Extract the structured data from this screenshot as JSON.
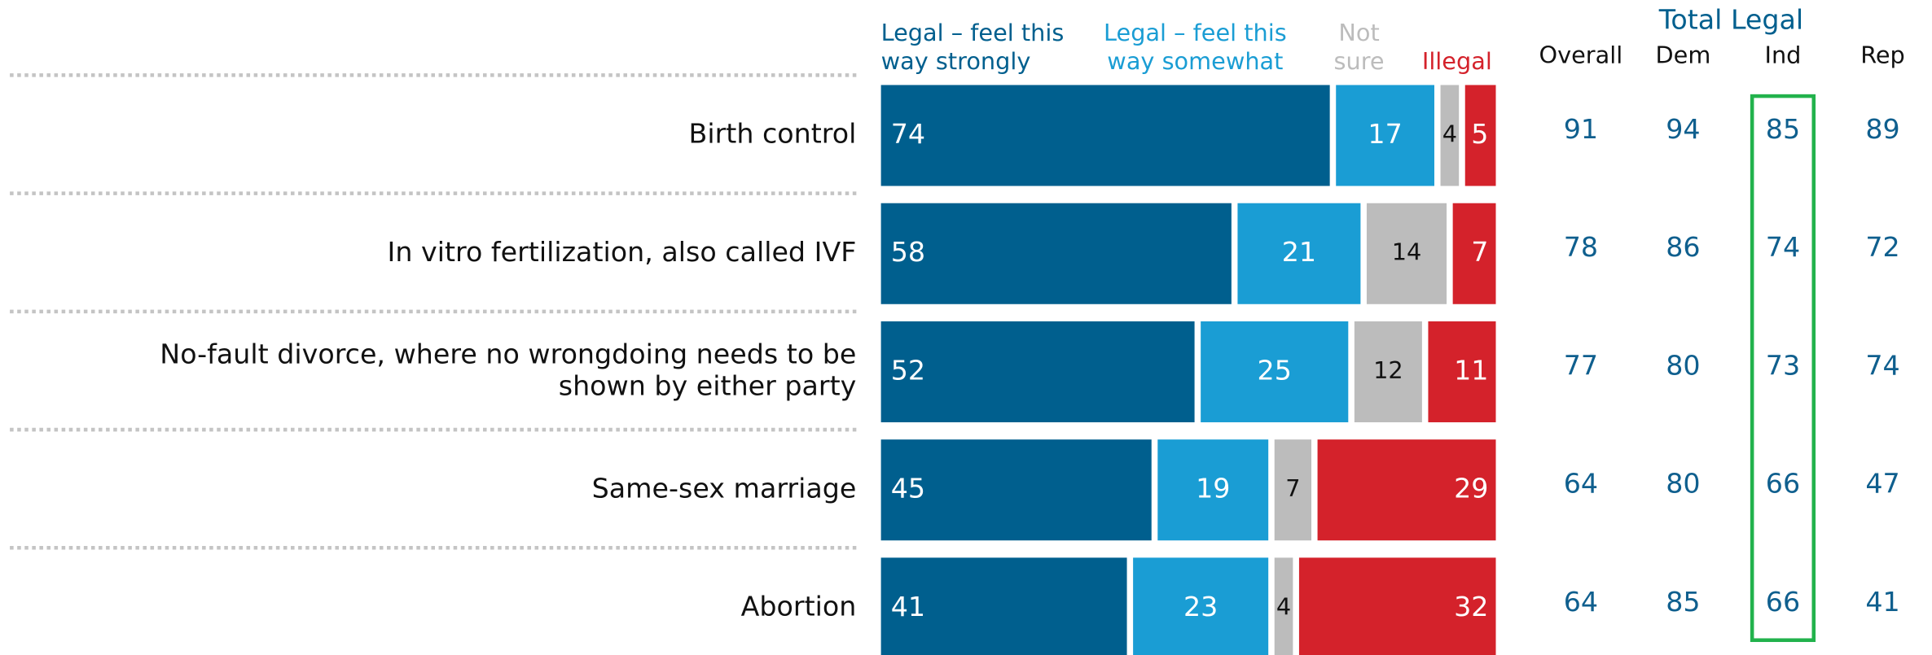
{
  "chart_data": {
    "type": "stacked-bar",
    "categories": [
      "Birth control",
      "In vitro fertilization, also called IVF",
      "No-fault divorce, where no wrongdoing needs to be shown by either party",
      "Same-sex marriage",
      "Abortion"
    ],
    "series": [
      {
        "name": "Legal – feel this way strongly",
        "color": "#005f8e",
        "values": [
          74,
          58,
          52,
          45,
          41
        ]
      },
      {
        "name": "Legal – feel this way somewhat",
        "color": "#1a9dd4",
        "values": [
          17,
          21,
          25,
          19,
          23
        ]
      },
      {
        "name": "Not sure",
        "color": "#bcbcbc",
        "values": [
          4,
          14,
          12,
          7,
          4
        ]
      },
      {
        "name": "Illegal",
        "color": "#d4222b",
        "values": [
          5,
          7,
          11,
          29,
          32
        ]
      }
    ],
    "xlim": [
      0,
      100
    ],
    "table": {
      "header": "Total Legal",
      "columns": [
        "Overall",
        "Dem",
        "Ind",
        "Rep"
      ],
      "rows": [
        [
          91,
          94,
          85,
          89
        ],
        [
          78,
          86,
          74,
          72
        ],
        [
          77,
          80,
          73,
          74
        ],
        [
          64,
          80,
          66,
          47
        ],
        [
          64,
          85,
          66,
          41
        ]
      ]
    }
  }
}
